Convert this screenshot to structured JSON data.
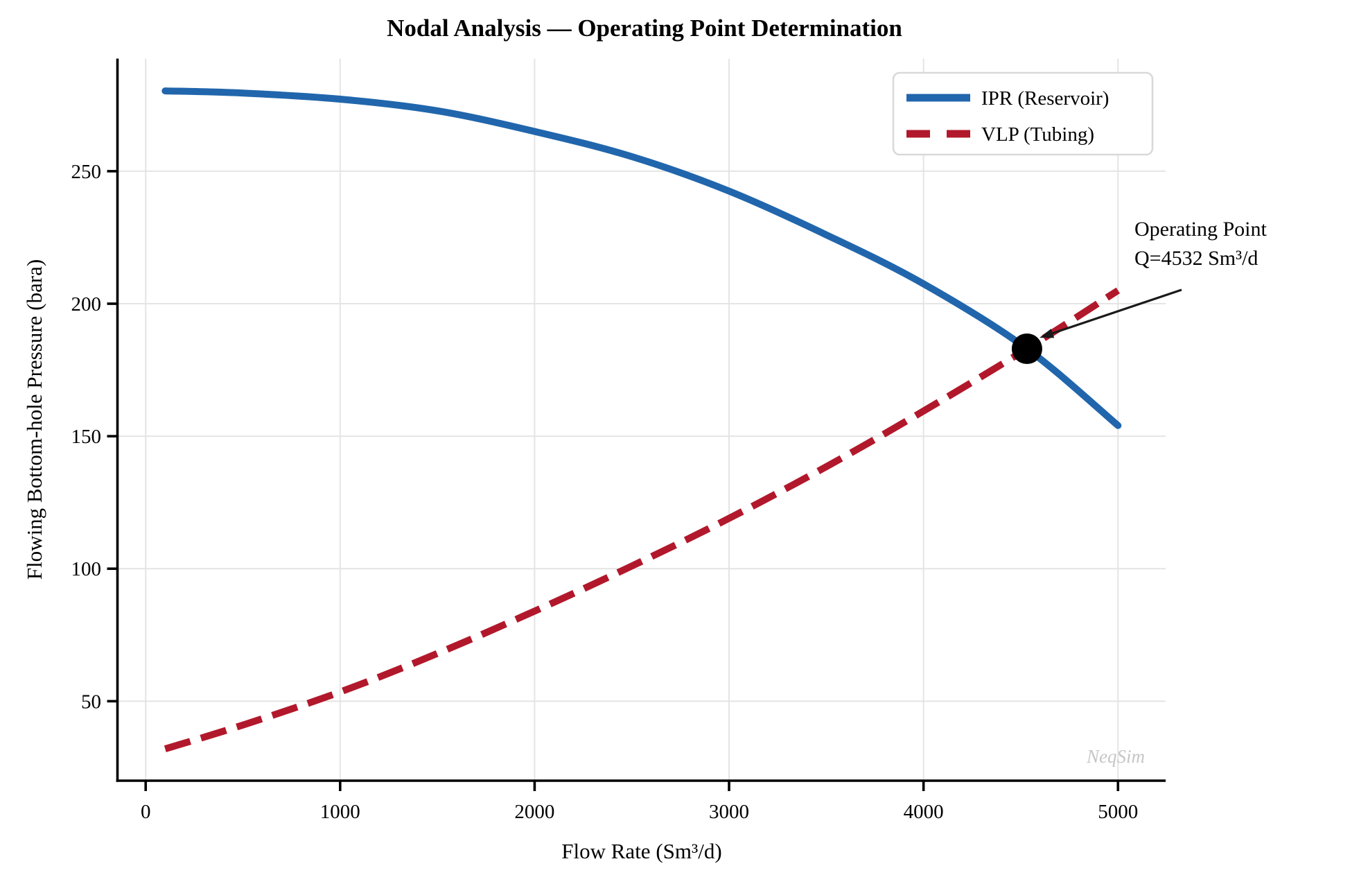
{
  "figure": {
    "watermark": "NeqSim"
  },
  "chart_data": {
    "type": "line",
    "title": "Nodal Analysis — Operating Point Determination",
    "xlabel": "Flow Rate (Sm³/d)",
    "ylabel": "Flowing Bottom-hole Pressure (bara)",
    "xlim": [
      -145,
      5245
    ],
    "ylim": [
      20,
      292.5
    ],
    "xticks": [
      0,
      1000,
      2000,
      3000,
      4000,
      5000
    ],
    "yticks": [
      50,
      100,
      150,
      200,
      250
    ],
    "grid": true,
    "legend_position": "upper right",
    "colors": {
      "ipr": "#2166ac",
      "vlp": "#b2182b",
      "grid": "#e4e4e4",
      "spine": "#000000",
      "marker": "#000000",
      "legend_border": "#d9d9d9"
    },
    "series": [
      {
        "name": "IPR (Reservoir)",
        "style": "solid",
        "color": "#2166ac",
        "points": [
          [
            100,
            280.3
          ],
          [
            500,
            279.5
          ],
          [
            1000,
            277.2
          ],
          [
            1500,
            272.8
          ],
          [
            2000,
            265.0
          ],
          [
            2500,
            255.5
          ],
          [
            3000,
            242.5
          ],
          [
            3500,
            226.0
          ],
          [
            4000,
            207.5
          ],
          [
            4532,
            183.0
          ],
          [
            5000,
            154.0
          ]
        ]
      },
      {
        "name": "VLP (Tubing)",
        "style": "dashed",
        "color": "#b2182b",
        "points": [
          [
            100,
            32.0
          ],
          [
            500,
            41.0
          ],
          [
            1000,
            53.5
          ],
          [
            1500,
            68.0
          ],
          [
            2000,
            84.0
          ],
          [
            2500,
            101.0
          ],
          [
            3000,
            119.0
          ],
          [
            3500,
            138.5
          ],
          [
            4000,
            159.5
          ],
          [
            4532,
            183.0
          ],
          [
            5000,
            205.0
          ]
        ]
      }
    ],
    "operating_point": {
      "flow_rate": 4532,
      "pressure": 183
    },
    "annotation": {
      "line1": "Operating Point",
      "line2": "Q=4532 Sm³/d"
    }
  }
}
